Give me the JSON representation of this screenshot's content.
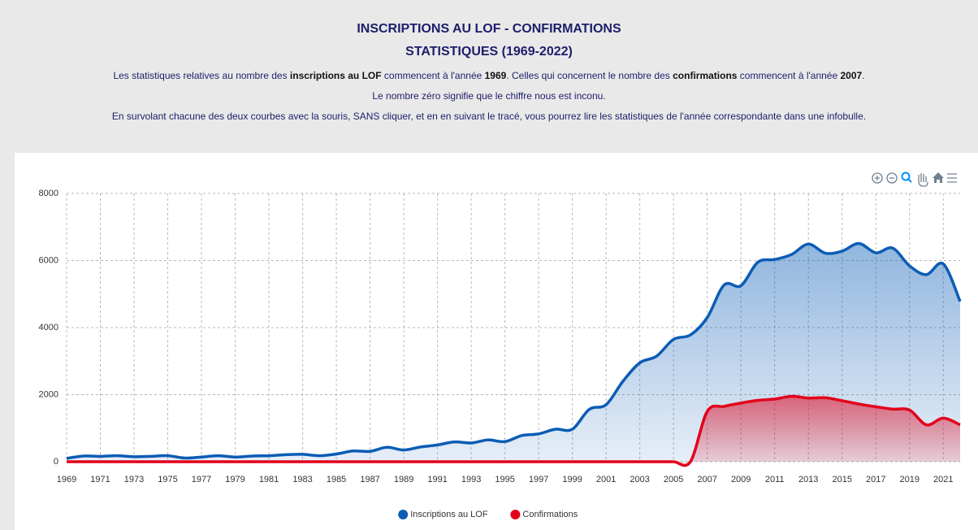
{
  "header": {
    "title": [
      "INSCRIPTIONS AU LOF - CONFIRMATIONS",
      "STATISTIQUES (1969-2022)"
    ],
    "paragraphs": [
      [
        {
          "text": "Les statistiques relatives au nombre des ",
          "bold": false
        },
        {
          "text": "inscriptions au LOF",
          "bold": true
        },
        {
          "text": " commencent à l'année ",
          "bold": false
        },
        {
          "text": "1969",
          "bold": true
        },
        {
          "text": ". Celles qui concernent le nombre des ",
          "bold": false
        },
        {
          "text": "confirmations",
          "bold": true
        },
        {
          "text": " commencent à l'année ",
          "bold": false
        },
        {
          "text": "2007",
          "bold": true
        },
        {
          "text": ".",
          "bold": false
        }
      ],
      [
        {
          "text": "Le nombre zéro signifie que le chiffre nous est inconu.",
          "bold": false
        }
      ],
      [
        {
          "text": "En survolant chacune des deux courbes avec la souris, SANS cliquer, et en en suivant le tracé, vous pourrez lire les statistiques de l'année correspondante dans une infobulle.",
          "bold": false
        }
      ]
    ]
  },
  "chart_data": {
    "type": "area",
    "x": [
      1969,
      1970,
      1971,
      1972,
      1973,
      1974,
      1975,
      1976,
      1977,
      1978,
      1979,
      1980,
      1981,
      1982,
      1983,
      1984,
      1985,
      1986,
      1987,
      1988,
      1989,
      1990,
      1991,
      1992,
      1993,
      1994,
      1995,
      1996,
      1997,
      1998,
      1999,
      2000,
      2001,
      2002,
      2003,
      2004,
      2005,
      2006,
      2007,
      2008,
      2009,
      2010,
      2011,
      2012,
      2013,
      2014,
      2015,
      2016,
      2017,
      2018,
      2019,
      2020,
      2021,
      2022
    ],
    "series": [
      {
        "name": "Inscriptions au LOF",
        "color": "#0b5cb5",
        "values": [
          100,
          170,
          160,
          180,
          150,
          160,
          180,
          110,
          140,
          180,
          140,
          170,
          180,
          210,
          220,
          180,
          230,
          320,
          310,
          430,
          350,
          440,
          500,
          590,
          560,
          650,
          600,
          780,
          830,
          970,
          970,
          1560,
          1700,
          2400,
          2950,
          3150,
          3650,
          3780,
          4300,
          5270,
          5250,
          5950,
          6030,
          6180,
          6490,
          6220,
          6280,
          6510,
          6230,
          6370,
          5840,
          5580,
          5900,
          4780
        ]
      },
      {
        "name": "Confirmations",
        "color": "#e2001a",
        "values": [
          0,
          0,
          0,
          0,
          0,
          0,
          0,
          0,
          0,
          0,
          0,
          0,
          0,
          0,
          0,
          0,
          0,
          0,
          0,
          0,
          0,
          0,
          0,
          0,
          0,
          0,
          0,
          0,
          0,
          0,
          0,
          0,
          0,
          0,
          0,
          0,
          0,
          0,
          1500,
          1650,
          1750,
          1830,
          1870,
          1950,
          1900,
          1910,
          1820,
          1720,
          1640,
          1570,
          1540,
          1100,
          1300,
          1100
        ]
      }
    ],
    "xlim": [
      1969,
      2022
    ],
    "xticks": [
      1969,
      1971,
      1973,
      1975,
      1977,
      1979,
      1981,
      1983,
      1985,
      1987,
      1989,
      1991,
      1993,
      1995,
      1997,
      1999,
      2001,
      2003,
      2005,
      2007,
      2009,
      2011,
      2013,
      2015,
      2017,
      2019,
      2021
    ],
    "ylim": [
      0,
      8000
    ],
    "yticks": [
      0,
      2000,
      4000,
      6000,
      8000
    ],
    "grid": true,
    "legend": "bottom"
  }
}
